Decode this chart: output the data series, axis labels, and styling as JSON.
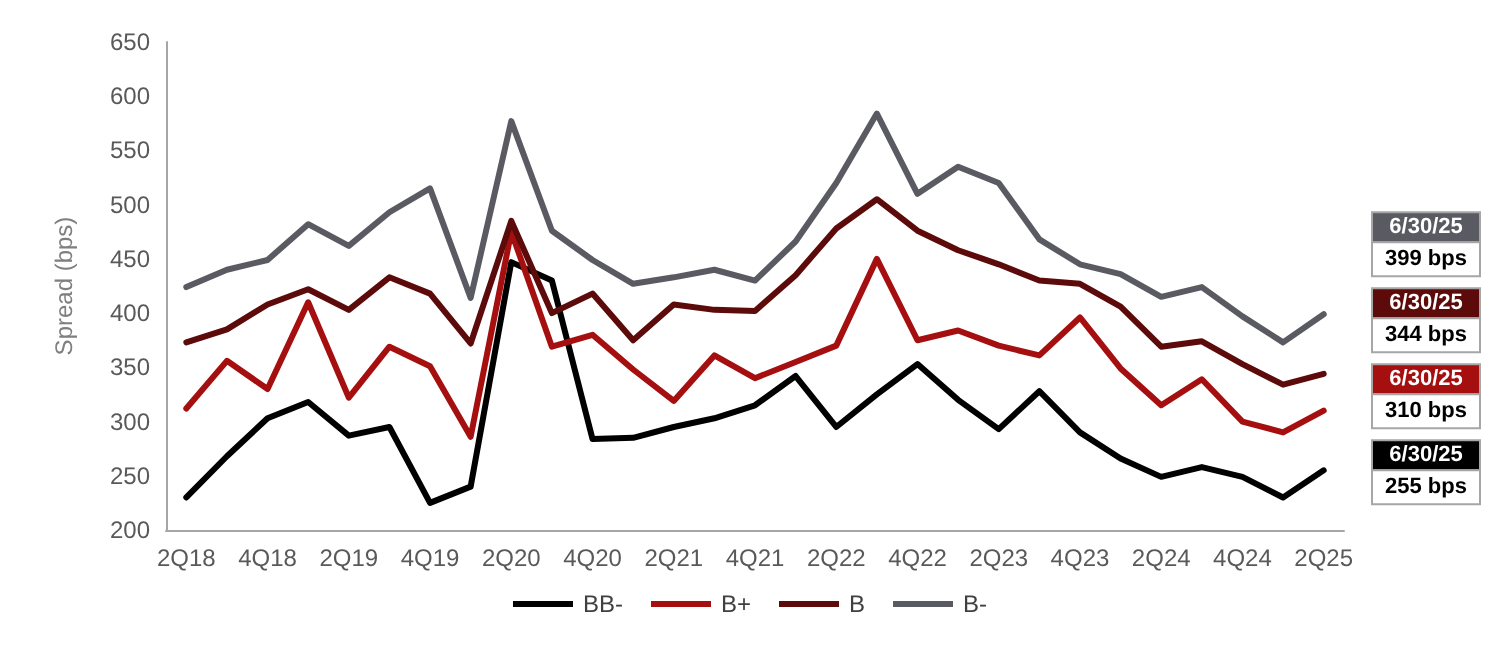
{
  "chart_data": {
    "type": "line",
    "ylabel": "Spread (bps)",
    "categories": [
      "2Q18",
      null,
      "4Q18",
      null,
      "2Q19",
      null,
      "4Q19",
      null,
      "2Q20",
      null,
      "4Q20",
      null,
      "2Q21",
      null,
      "4Q21",
      null,
      "2Q22",
      null,
      "4Q22",
      null,
      "2Q23",
      null,
      "4Q23",
      null,
      "2Q24",
      null,
      "4Q24",
      null,
      "2Q25"
    ],
    "series": [
      {
        "name": "BB-",
        "color": "#000000",
        "values": [
          230,
          268,
          303,
          318,
          287,
          295,
          225,
          240,
          447,
          430,
          284,
          285,
          295,
          303,
          315,
          342,
          295,
          325,
          353,
          320,
          293,
          328,
          290,
          266,
          249,
          258,
          249,
          230,
          255
        ]
      },
      {
        "name": "B+",
        "color": "#a50f0f",
        "values": [
          312,
          356,
          330,
          410,
          322,
          369,
          351,
          286,
          475,
          369,
          380,
          348,
          319,
          361,
          340,
          355,
          370,
          450,
          375,
          384,
          370,
          361,
          396,
          349,
          315,
          339,
          300,
          290,
          310
        ]
      },
      {
        "name": "B",
        "color": "#5c0a0a",
        "values": [
          373,
          385,
          408,
          422,
          403,
          433,
          418,
          372,
          485,
          400,
          418,
          375,
          408,
          403,
          402,
          435,
          478,
          505,
          476,
          458,
          445,
          430,
          427,
          406,
          369,
          374,
          353,
          334,
          344
        ]
      },
      {
        "name": "B-",
        "color": "#5a5a62",
        "values": [
          424,
          440,
          449,
          482,
          462,
          493,
          515,
          414,
          577,
          476,
          449,
          427,
          433,
          440,
          430,
          466,
          520,
          584,
          510,
          535,
          520,
          468,
          445,
          436,
          415,
          424,
          397,
          373,
          399
        ]
      }
    ],
    "ylim": [
      200,
      650
    ],
    "yticks": [
      200,
      250,
      300,
      350,
      400,
      450,
      500,
      550,
      600,
      650
    ],
    "grid": false,
    "legend": "bottom",
    "marker": "none",
    "line_style": "solid",
    "annotations": [
      "6/30/25",
      "399 bps",
      "6/30/25",
      "344 bps",
      "6/30/25",
      "310 bps",
      "6/30/25",
      "255 bps"
    ]
  }
}
